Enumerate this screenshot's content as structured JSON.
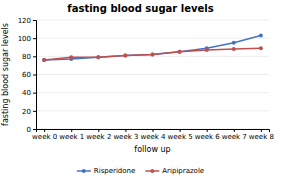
{
  "chart_data": {
    "type": "line",
    "title": "fasting blood sugar levels",
    "xlabel": "follow up",
    "ylabel": "fasting blood sugar levels",
    "categories": [
      "week 0",
      "week 1",
      "week 2",
      "week 3",
      "week 4",
      "week 5",
      "week 6",
      "week 7",
      "week 8"
    ],
    "series": [
      {
        "name": "Risperidone",
        "color": "#4472c4",
        "values": [
          76,
          77,
          79,
          81,
          82,
          85,
          89,
          95,
          103
        ]
      },
      {
        "name": "Aripiprazole",
        "color": "#c0504d",
        "values": [
          76,
          79,
          79,
          81,
          82,
          85,
          87,
          88,
          89
        ]
      }
    ],
    "ylim": [
      0,
      120
    ],
    "yticks": [
      0,
      20,
      40,
      60,
      80,
      100,
      120
    ],
    "grid": true,
    "legend": "bottom",
    "marker": "circle"
  }
}
